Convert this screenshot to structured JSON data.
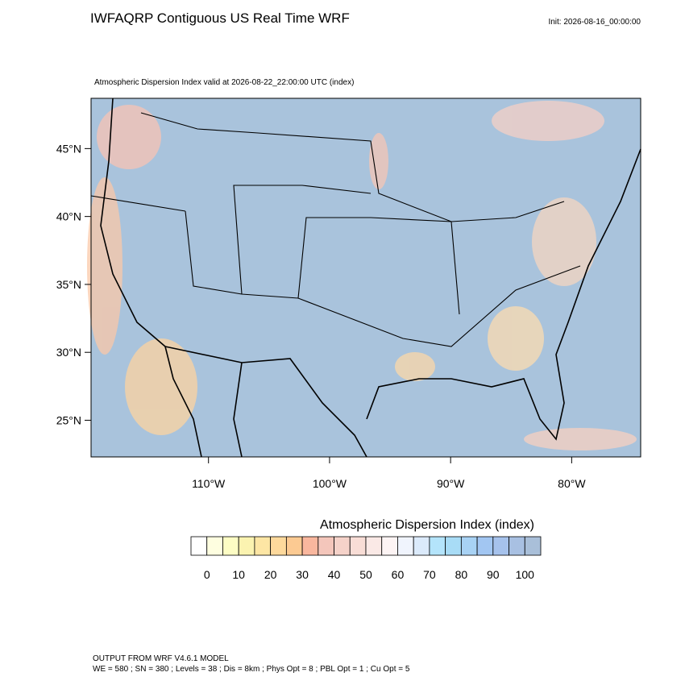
{
  "header": {
    "title": "IWFAQRP Contiguous US Real Time WRF",
    "init": "Init: 2026-08-16_00:00:00",
    "subtitle": "Atmospheric Dispersion Index valid at 2026-08-22_22:00:00 UTC   (index)"
  },
  "map": {
    "xlim": [
      -119.7,
      -74.3
    ],
    "ylim": [
      22.3,
      48.7
    ],
    "yticks": [
      {
        "value": 45,
        "label": "45°N"
      },
      {
        "value": 40,
        "label": "40°N"
      },
      {
        "value": 35,
        "label": "35°N"
      },
      {
        "value": 30,
        "label": "30°N"
      },
      {
        "value": 25,
        "label": "25°N"
      }
    ],
    "xticks": [
      {
        "value": -110,
        "label": "110°W"
      },
      {
        "value": -100,
        "label": "100°W"
      },
      {
        "value": -90,
        "label": "90°W"
      },
      {
        "value": -80,
        "label": "80°W"
      }
    ],
    "background": "#a9c3dc"
  },
  "colorbar": {
    "title": "Atmospheric Dispersion Index  (index)",
    "lim": [
      -5,
      105
    ],
    "ticks": [
      0,
      10,
      20,
      30,
      40,
      50,
      60,
      70,
      80,
      90,
      100
    ],
    "colors": [
      "#ffffff",
      "#fefee0",
      "#fdfdc4",
      "#fbf3b0",
      "#fde6a4",
      "#fdd99c",
      "#fcca92",
      "#f9b79e",
      "#f4c6bb",
      "#f5d2c9",
      "#f8ddd6",
      "#fae9e6",
      "#fdf4f4",
      "#f0f4fd",
      "#dbeafb",
      "#b4e4fb",
      "#a8dcf6",
      "#a8d2f4",
      "#a2c6f2",
      "#a6c2ec",
      "#a8c0e2",
      "#a9bfd9"
    ]
  },
  "footer": {
    "line1": "OUTPUT FROM WRF V4.6.1 MODEL",
    "line2": "WE = 580 ; SN = 380 ; Levels = 38 ; Dis = 8km ; Phys Opt = 8 ; PBL Opt = 1 ; Cu Opt = 5"
  }
}
